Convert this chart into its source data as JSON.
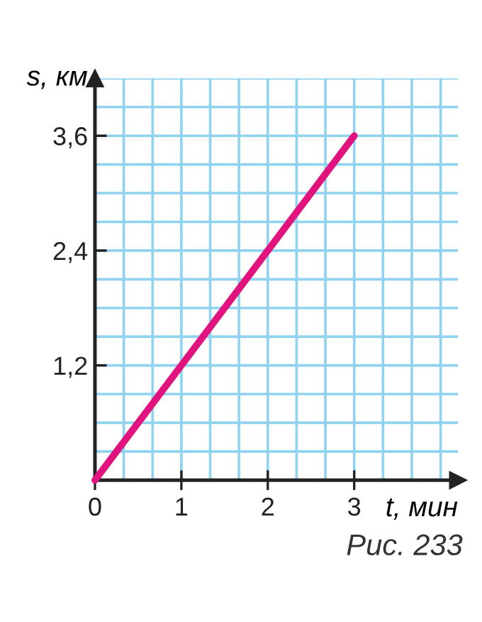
{
  "chart_data": {
    "type": "line",
    "xlabel": "t, мин",
    "ylabel": "s, км",
    "x": [
      0,
      3
    ],
    "series": [
      {
        "color": "#e0137f",
        "values": [
          0,
          3.6
        ]
      }
    ],
    "xlim": [
      0,
      4.2
    ],
    "ylim": [
      0,
      4.2
    ],
    "xticks": [
      0,
      1,
      2,
      3
    ],
    "yticks": [
      {
        "value": 0,
        "label": null
      },
      {
        "value": 1.2,
        "label": "1,2"
      },
      {
        "value": 2.4,
        "label": "2,4"
      },
      {
        "value": 3.6,
        "label": "3,6"
      }
    ],
    "grid": true,
    "marker": "none",
    "line_style": "solid",
    "annotations": [
      "Рис. 233"
    ]
  }
}
